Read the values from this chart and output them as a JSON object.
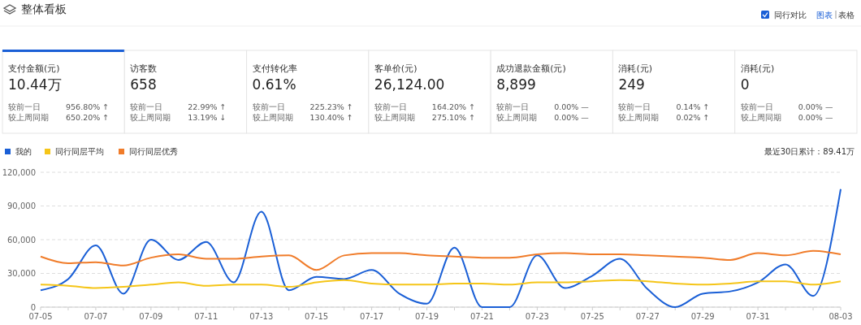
{
  "chart_data": [
    {
      "type": "other",
      "title": "整体看板",
      "annotations": [
        "同行对比",
        "图表",
        "表格",
        "较前一日",
        "较上周同期",
        "956.80% ↑",
        "650.20% ↑",
        "22.99% ↑",
        "13.19% ↓",
        "225.23% ↑",
        "130.40% ↑",
        "164.20% ↑",
        "275.10% ↑",
        "0.00% —",
        "0.00% —",
        "0.14% ↑",
        "0.02% ↑",
        "0.00% —",
        "0.00% —"
      ],
      "categories": [
        "支付金额(元)",
        "访客数",
        "支付转化率",
        "客单价(元)",
        "成功退款金额(元)",
        "消耗(元)",
        "消耗(元)"
      ],
      "value_labels": [
        "10.44万",
        "658",
        "0.61%",
        "26,124.00",
        "8,899",
        "249",
        "0"
      ]
    },
    {
      "type": "line",
      "legend": "top left",
      "grid": "y",
      "annotations": [
        "最近30日累计：89.41万"
      ],
      "categories": [
        "07-05",
        null,
        "07-07",
        null,
        "07-09",
        null,
        "07-11",
        null,
        "07-13",
        null,
        "07-15",
        null,
        "07-17",
        null,
        "07-19",
        null,
        "07-21",
        null,
        "07-23",
        null,
        "07-25",
        null,
        "07-27",
        null,
        "07-29",
        null,
        "07-31",
        null,
        null,
        "08-03"
      ],
      "ylim": [
        0,
        120000
      ],
      "yticks": [
        {
          "value": 0,
          "label": "0"
        },
        {
          "value": 30000,
          "label": "30,000"
        },
        {
          "value": 60000,
          "label": "60,000"
        },
        {
          "value": 90000,
          "label": "90,000"
        },
        {
          "value": 120000,
          "label": "120,000"
        }
      ],
      "series": [
        {
          "name": "我的",
          "color": "#1a5fd6",
          "values": [
            15000,
            25000,
            55000,
            12000,
            60000,
            42000,
            58000,
            22000,
            85000,
            15000,
            27000,
            25000,
            33000,
            12000,
            3000,
            53000,
            0,
            0,
            46000,
            17000,
            28000,
            43000,
            16000,
            0,
            12000,
            14000,
            22000,
            38000,
            10000,
            105000
          ]
        },
        {
          "name": "同行同层平均",
          "color": "#f5c518",
          "values": [
            20000,
            19000,
            17000,
            18000,
            20000,
            22000,
            19000,
            20000,
            20000,
            18000,
            22000,
            24000,
            21000,
            20000,
            20000,
            21000,
            21000,
            20000,
            22000,
            22000,
            23000,
            24000,
            23000,
            21000,
            20000,
            21000,
            23000,
            23000,
            20000,
            23000
          ]
        },
        {
          "name": "同行同层优秀",
          "color": "#f07c2a",
          "values": [
            45000,
            39000,
            40000,
            37000,
            44000,
            47000,
            43000,
            43000,
            45000,
            46000,
            33000,
            46000,
            48000,
            48000,
            46000,
            45000,
            44000,
            44000,
            47000,
            48000,
            47000,
            47000,
            46000,
            45000,
            44000,
            42000,
            48000,
            46000,
            50000,
            47000
          ]
        }
      ]
    }
  ]
}
